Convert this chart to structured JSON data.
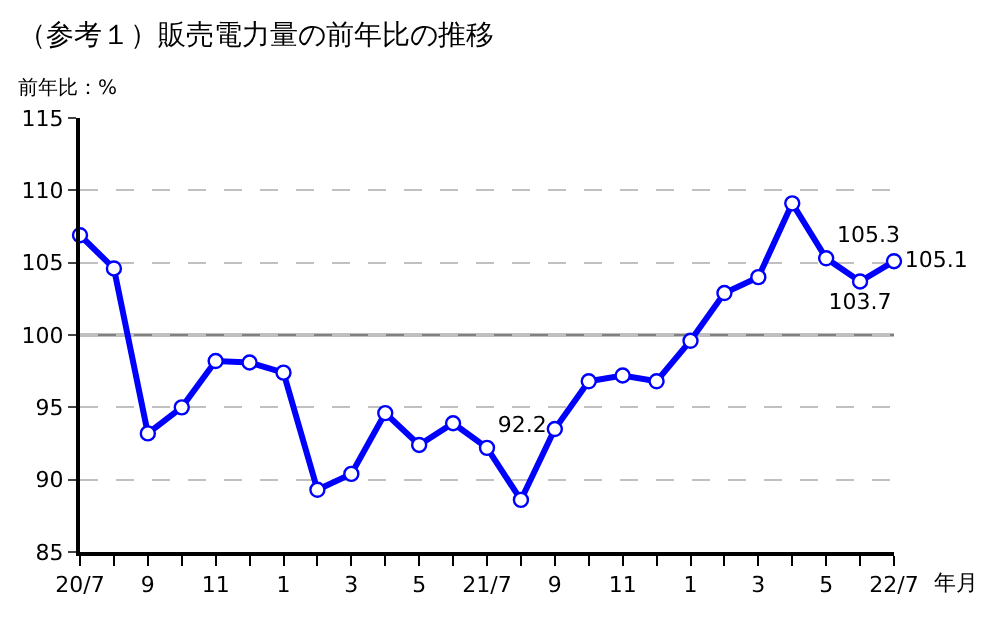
{
  "chart_data": {
    "type": "line",
    "title": "（参考１）販売電力量の前年比の推移",
    "ylabel": "前年比：%",
    "xlabel": "年月",
    "categories": [
      "20/7",
      null,
      "9",
      null,
      "11",
      null,
      "1",
      null,
      "3",
      null,
      "5",
      null,
      "21/7",
      null,
      "9",
      null,
      "11",
      null,
      "1",
      null,
      "3",
      null,
      "5",
      null,
      "22/7"
    ],
    "series": [
      {
        "color": "#0000ff",
        "values": [
          106.9,
          104.6,
          93.2,
          95.0,
          98.2,
          98.1,
          97.4,
          89.3,
          90.4,
          94.6,
          92.4,
          93.9,
          92.2,
          88.6,
          93.5,
          96.8,
          97.2,
          96.8,
          99.6,
          102.9,
          104.0,
          109.1,
          105.3,
          103.7,
          105.1
        ],
        "value_labels": [
          null,
          null,
          null,
          null,
          null,
          null,
          null,
          null,
          null,
          null,
          null,
          null,
          "92.2",
          null,
          null,
          null,
          null,
          null,
          null,
          null,
          null,
          null,
          "105.3",
          "103.7",
          "105.1"
        ]
      }
    ],
    "ylim": [
      85,
      115
    ],
    "yticks": [
      85,
      90,
      95,
      100,
      105,
      110,
      115
    ],
    "grid": "y",
    "legend": false,
    "marker": "circle",
    "line_style": "solid",
    "ref_lines": [
      {
        "axis": "y",
        "value": 100,
        "color": "#808080"
      }
    ]
  }
}
